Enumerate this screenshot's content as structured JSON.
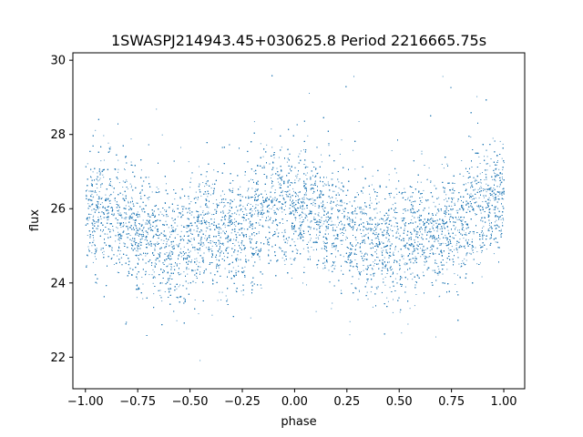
{
  "chart_data": {
    "type": "scatter",
    "title": "1SWASPJ214943.45+030625.8 Period 2216665.75s",
    "xlabel": "phase",
    "ylabel": "flux",
    "xlim": [
      -1.06,
      1.1
    ],
    "ylim": [
      21.15,
      30.2
    ],
    "x_ticks": [
      -1.0,
      -0.75,
      -0.5,
      -0.25,
      0.0,
      0.25,
      0.5,
      0.75,
      1.0
    ],
    "x_tick_labels": [
      "−1.00",
      "−0.75",
      "−0.50",
      "−0.25",
      "0.00",
      "0.25",
      "0.50",
      "0.75",
      "1.00"
    ],
    "y_ticks": [
      22,
      24,
      26,
      28,
      30
    ],
    "y_tick_labels": [
      "22",
      "24",
      "26",
      "28",
      "30"
    ],
    "grid": false,
    "legend": "none",
    "point_color": "#1f77b4",
    "series": [
      {
        "phase_range": [
          -1.0,
          1.0
        ],
        "baseline_profile": {
          "phase": [
            0.0,
            0.1,
            0.2,
            0.3,
            0.4,
            0.5,
            0.6,
            0.7,
            0.8,
            0.9,
            1.0
          ],
          "flux": [
            26.1,
            25.9,
            25.6,
            25.3,
            25.0,
            25.1,
            25.5,
            25.3,
            25.7,
            26.1,
            26.2
          ]
        },
        "flux_scatter": 0.75,
        "n_points_approx": 16000
      }
    ]
  }
}
